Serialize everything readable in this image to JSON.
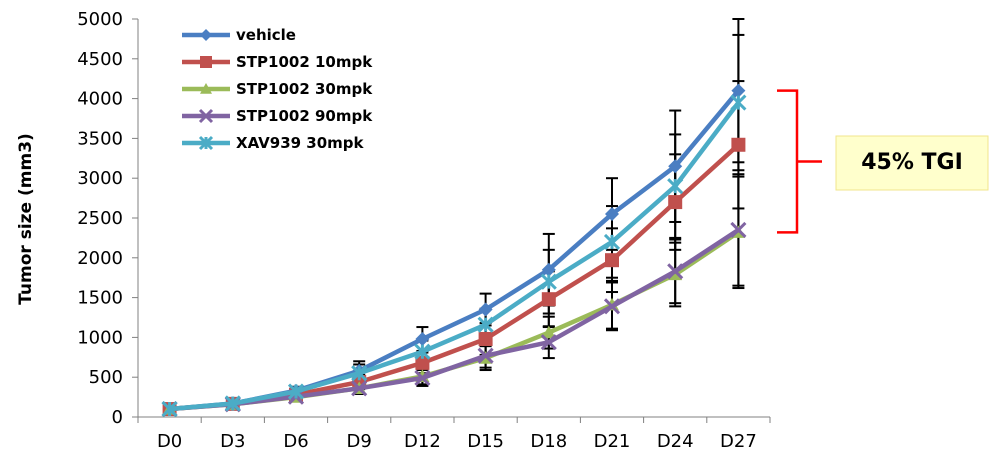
{
  "chart_data": {
    "type": "line",
    "ylabel": "Tumor size (mm3)",
    "xlabel": "",
    "ylim": [
      0,
      5000
    ],
    "yticks": [
      0,
      500,
      1000,
      1500,
      2000,
      2500,
      3000,
      3500,
      4000,
      4500,
      5000
    ],
    "categories": [
      "D0",
      "D3",
      "D6",
      "D9",
      "D12",
      "D15",
      "D18",
      "D21",
      "D24",
      "D27"
    ],
    "grid": false,
    "legend_position": "top-left",
    "series": [
      {
        "name": "vehicle",
        "color": "#4A7EC2",
        "marker": "diamond",
        "values": [
          100,
          170,
          330,
          580,
          980,
          1350,
          1850,
          2550,
          3150,
          4100
        ],
        "error": [
          20,
          30,
          50,
          120,
          150,
          200,
          450,
          450,
          700,
          900
        ]
      },
      {
        "name": "STP1002 10mpk",
        "color": "#C0504D",
        "marker": "square",
        "values": [
          100,
          165,
          280,
          440,
          680,
          980,
          1480,
          1970,
          2700,
          3420
        ],
        "error": [
          20,
          25,
          40,
          90,
          130,
          200,
          350,
          400,
          600,
          800
        ]
      },
      {
        "name": "STP1002 30mpk",
        "color": "#9BBB59",
        "marker": "triangle",
        "values": [
          100,
          160,
          250,
          360,
          510,
          740,
          1060,
          1410,
          1790,
          2320
        ],
        "error": [
          20,
          25,
          40,
          70,
          100,
          150,
          200,
          300,
          400,
          700
        ]
      },
      {
        "name": "STP1002 90mpk",
        "color": "#8064A2",
        "marker": "x",
        "values": [
          100,
          160,
          255,
          360,
          490,
          770,
          940,
          1390,
          1830,
          2350
        ],
        "error": [
          20,
          25,
          40,
          70,
          100,
          150,
          200,
          300,
          400,
          700
        ]
      },
      {
        "name": "XAV939 30mpk",
        "color": "#4BACC6",
        "marker": "star",
        "values": [
          100,
          170,
          320,
          550,
          820,
          1160,
          1700,
          2200,
          2900,
          3950
        ],
        "error": [
          20,
          30,
          50,
          110,
          140,
          200,
          400,
          450,
          650,
          850
        ]
      }
    ],
    "annotation": {
      "text": "45% TGI",
      "bracket_from": 4100,
      "bracket_to": 2320,
      "box_fill": "#FFFFCC"
    }
  }
}
